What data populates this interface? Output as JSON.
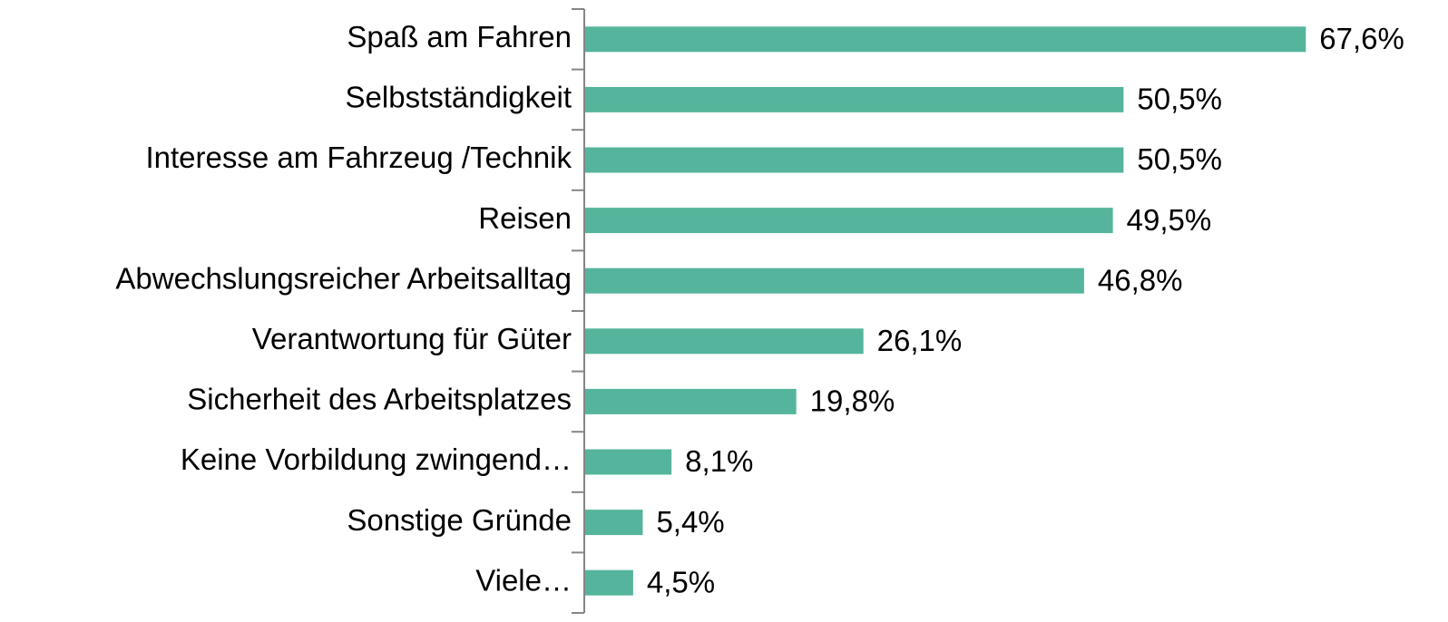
{
  "chart_data": {
    "type": "hbar",
    "categories": [
      "Spaß am Fahren",
      "Selbstständigkeit",
      "Interesse am Fahrzeug /Technik",
      "Reisen",
      "Abwechslungsreicher Arbeitsalltag",
      "Verantwortung für Güter",
      "Sicherheit des Arbeitsplatzes",
      "Keine Vorbildung zwingend…",
      "Sonstige Gründe",
      "Viele…"
    ],
    "values": [
      67.6,
      50.5,
      50.5,
      49.5,
      46.8,
      26.1,
      19.8,
      8.1,
      5.4,
      4.5
    ],
    "value_labels": [
      "67,6%",
      "50,5%",
      "50,5%",
      "49,5%",
      "46,8%",
      "26,1%",
      "19,8%",
      "8,1%",
      "5,4%",
      "4,5%"
    ],
    "color": "#55b59c"
  }
}
